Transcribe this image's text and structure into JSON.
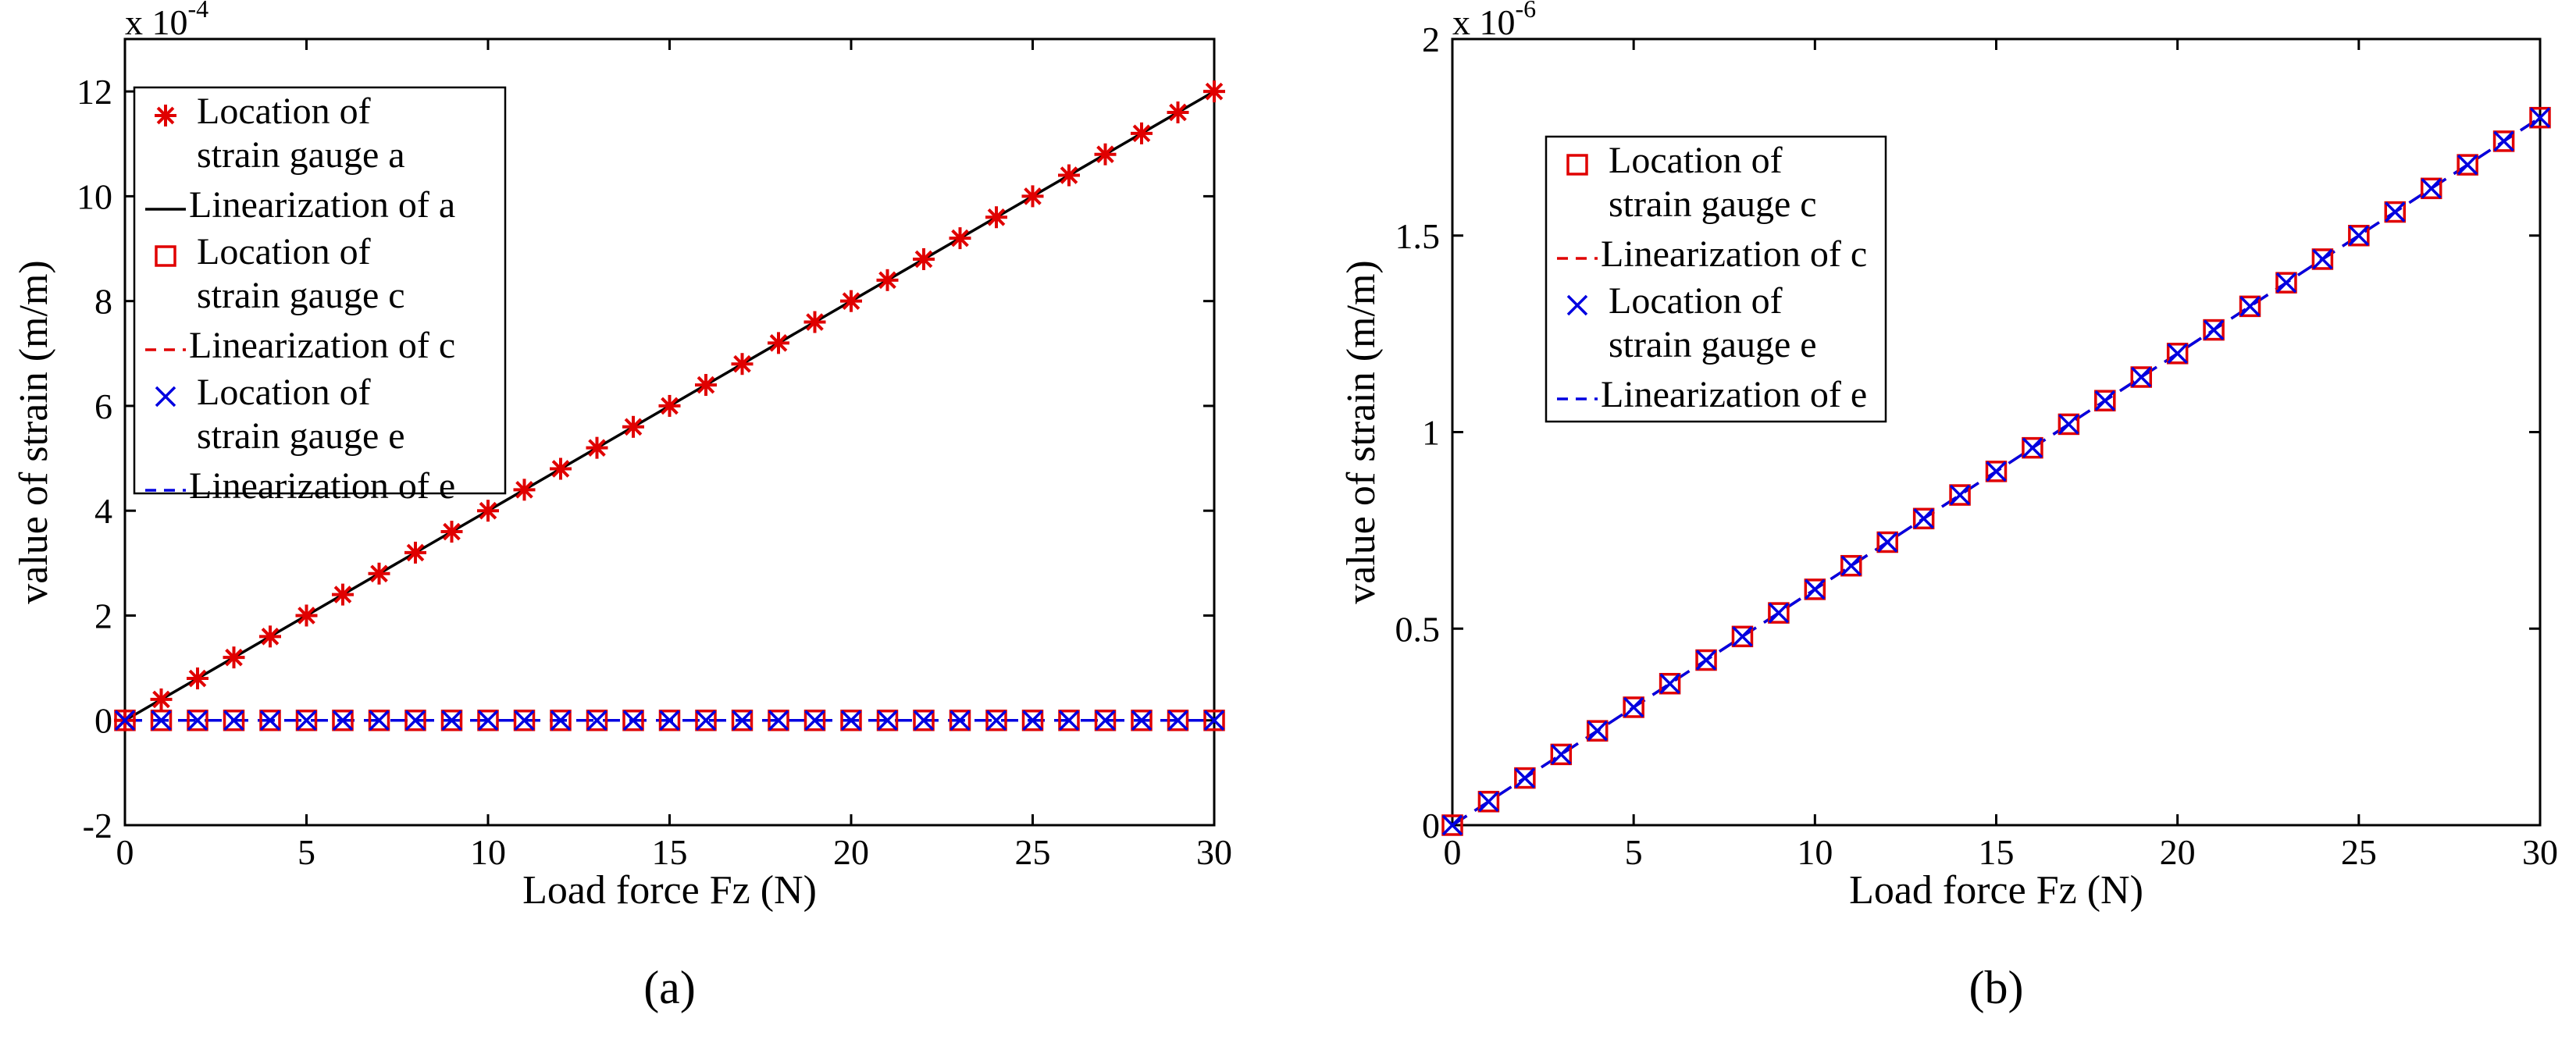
{
  "chart_data": [
    {
      "panel_label": "(a)",
      "type": "line",
      "xlabel": "Load force Fz (N)",
      "ylabel": "value of strain (m/m)",
      "xlim": [
        0,
        30
      ],
      "ylim": [
        -2,
        13
      ],
      "xticks": [
        "0",
        "5",
        "10",
        "15",
        "20",
        "25",
        "30"
      ],
      "yticks": [
        "-2",
        "0",
        "2",
        "4",
        "6",
        "8",
        "10",
        "12"
      ],
      "scale_base": "x 10",
      "scale_exp": "-4",
      "x": [
        0,
        1,
        2,
        3,
        4,
        5,
        6,
        7,
        8,
        9,
        10,
        11,
        12,
        13,
        14,
        15,
        16,
        17,
        18,
        19,
        20,
        21,
        22,
        23,
        24,
        25,
        26,
        27,
        28,
        29,
        30
      ],
      "series": [
        {
          "name": "Location of strain gauge a",
          "style": "marker",
          "marker": "star",
          "color": "#e00000",
          "values": [
            0,
            0.4,
            0.8,
            1.2,
            1.6,
            2.0,
            2.4,
            2.8,
            3.2,
            3.6,
            4.0,
            4.4,
            4.8,
            5.2,
            5.6,
            6.0,
            6.4,
            6.8,
            7.2,
            7.6,
            8.0,
            8.4,
            8.8,
            9.2,
            9.6,
            10.0,
            10.4,
            10.8,
            11.2,
            11.6,
            12.0
          ]
        },
        {
          "name": "Linearization of a",
          "style": "line",
          "dash": "solid",
          "color": "#000000",
          "x": [
            0,
            30
          ],
          "values": [
            0,
            12
          ]
        },
        {
          "name": "Location of strain gauge c",
          "style": "marker",
          "marker": "square",
          "color": "#e00000",
          "values": [
            0,
            0,
            0,
            0,
            0,
            0,
            0,
            0,
            0,
            0,
            0,
            0,
            0,
            0,
            0,
            0,
            0,
            0,
            0,
            0,
            0,
            0,
            0,
            0,
            0,
            0,
            0,
            0,
            0,
            0,
            0
          ]
        },
        {
          "name": "Linearization of c",
          "style": "line",
          "dash": "dashed",
          "color": "#e00000",
          "x": [
            0,
            30
          ],
          "values": [
            0,
            0
          ]
        },
        {
          "name": "Location of strain gauge e",
          "style": "marker",
          "marker": "x",
          "color": "#0000e0",
          "values": [
            0,
            0,
            0,
            0,
            0,
            0,
            0,
            0,
            0,
            0,
            0,
            0,
            0,
            0,
            0,
            0,
            0,
            0,
            0,
            0,
            0,
            0,
            0,
            0,
            0,
            0,
            0,
            0,
            0,
            0,
            0
          ]
        },
        {
          "name": "Linearization of e",
          "style": "line",
          "dash": "dashed",
          "color": "#0000e0",
          "x": [
            0,
            30
          ],
          "values": [
            0,
            0
          ]
        }
      ],
      "legend": {
        "placement": "top-left",
        "entries": [
          {
            "series": 0,
            "lines": [
              "Location of",
              "strain gauge a"
            ]
          },
          {
            "series": 1,
            "lines": [
              "Linearization of a"
            ]
          },
          {
            "series": 2,
            "lines": [
              "Location of",
              "strain gauge c"
            ]
          },
          {
            "series": 3,
            "lines": [
              "Linearization of c"
            ]
          },
          {
            "series": 4,
            "lines": [
              "Location of",
              "strain gauge e"
            ]
          },
          {
            "series": 5,
            "lines": [
              "Linearization of e"
            ]
          }
        ]
      }
    },
    {
      "panel_label": "(b)",
      "type": "line",
      "xlabel": "Load force Fz (N)",
      "ylabel": "value of strain (m/m)",
      "xlim": [
        0,
        30
      ],
      "ylim": [
        0,
        2
      ],
      "xticks": [
        "0",
        "5",
        "10",
        "15",
        "20",
        "25",
        "30"
      ],
      "yticks": [
        "0",
        "0.5",
        "1",
        "1.5",
        "2"
      ],
      "scale_base": "x 10",
      "scale_exp": "-6",
      "x": [
        0,
        1,
        2,
        3,
        4,
        5,
        6,
        7,
        8,
        9,
        10,
        11,
        12,
        13,
        14,
        15,
        16,
        17,
        18,
        19,
        20,
        21,
        22,
        23,
        24,
        25,
        26,
        27,
        28,
        29,
        30
      ],
      "series": [
        {
          "name": "Location of strain gauge c",
          "style": "marker",
          "marker": "square",
          "color": "#e00000",
          "values": [
            0,
            0.06,
            0.12,
            0.18,
            0.24,
            0.3,
            0.36,
            0.42,
            0.48,
            0.54,
            0.6,
            0.66,
            0.72,
            0.78,
            0.84,
            0.9,
            0.96,
            1.02,
            1.08,
            1.14,
            1.2,
            1.26,
            1.32,
            1.38,
            1.44,
            1.5,
            1.56,
            1.62,
            1.68,
            1.74,
            1.8
          ]
        },
        {
          "name": "Linearization of c",
          "style": "line",
          "dash": "dashed",
          "color": "#e00000",
          "x": [
            0,
            30
          ],
          "values": [
            0,
            1.8
          ]
        },
        {
          "name": "Location of strain gauge e",
          "style": "marker",
          "marker": "x",
          "color": "#0000e0",
          "values": [
            0,
            0.06,
            0.12,
            0.18,
            0.24,
            0.3,
            0.36,
            0.42,
            0.48,
            0.54,
            0.6,
            0.66,
            0.72,
            0.78,
            0.84,
            0.9,
            0.96,
            1.02,
            1.08,
            1.14,
            1.2,
            1.26,
            1.32,
            1.38,
            1.44,
            1.5,
            1.56,
            1.62,
            1.68,
            1.74,
            1.8
          ]
        },
        {
          "name": "Linearization of e",
          "style": "line",
          "dash": "dashed",
          "color": "#0000e0",
          "x": [
            0,
            30
          ],
          "values": [
            0,
            1.8
          ]
        }
      ],
      "legend": {
        "placement": "top-left",
        "entries": [
          {
            "series": 0,
            "lines": [
              "Location of",
              "strain gauge c"
            ]
          },
          {
            "series": 1,
            "lines": [
              "Linearization of c"
            ]
          },
          {
            "series": 2,
            "lines": [
              "Location of",
              "strain gauge e"
            ]
          },
          {
            "series": 3,
            "lines": [
              "Linearization of e"
            ]
          }
        ]
      }
    }
  ]
}
